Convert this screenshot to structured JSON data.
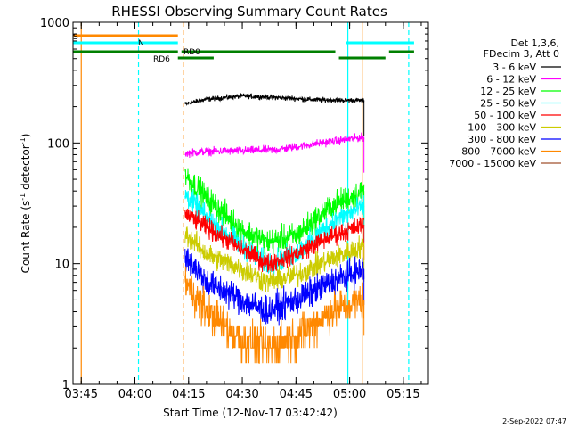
{
  "chart_data": {
    "type": "line",
    "title": "RHESSI Observing Summary Count Rates",
    "xlabel": "Start Time (12-Nov-17 03:42:42)",
    "ylabel": "Count Rate (s⁻¹ detector⁻¹)",
    "ylabel_base": "Count Rate (s",
    "ylabel_mid": " detector",
    "ylabel_end": ")",
    "ylabel_exp": "-1",
    "y_scale": "log",
    "ylim": [
      1,
      1000
    ],
    "y_ticks": [
      {
        "value": 1,
        "label": "1"
      },
      {
        "value": 10,
        "label": "10"
      },
      {
        "value": 100,
        "label": "100"
      },
      {
        "value": 1000,
        "label": "1000"
      }
    ],
    "xlim": [
      "03:42:42",
      "05:22:00"
    ],
    "x_ticks": [
      "03:45",
      "04:00",
      "04:15",
      "04:30",
      "04:45",
      "05:00",
      "05:15"
    ],
    "legend_position": "right",
    "legend_header": [
      "Det 1,3,6,",
      "FDecim 3, Att 0"
    ],
    "footer_date": "2-Sep-2022 07:47",
    "data_window": [
      "04:14",
      "05:04"
    ],
    "series": [
      {
        "name": "3 - 6 keV",
        "color": "#000000",
        "points": [
          [
            "04:14",
            210
          ],
          [
            "04:20",
            230
          ],
          [
            "04:30",
            245
          ],
          [
            "04:40",
            238
          ],
          [
            "04:50",
            228
          ],
          [
            "05:04",
            225
          ]
        ]
      },
      {
        "name": "6 - 12 keV",
        "color": "#ff00ff",
        "points": [
          [
            "04:14",
            82
          ],
          [
            "04:20",
            85
          ],
          [
            "04:30",
            86
          ],
          [
            "04:40",
            88
          ],
          [
            "04:50",
            98
          ],
          [
            "05:04",
            112
          ]
        ]
      },
      {
        "name": "12 - 25 keV",
        "color": "#00ff00",
        "points": [
          [
            "04:14",
            55
          ],
          [
            "04:20",
            35
          ],
          [
            "04:30",
            19
          ],
          [
            "04:37",
            15
          ],
          [
            "04:45",
            17
          ],
          [
            "04:55",
            30
          ],
          [
            "05:04",
            40
          ]
        ]
      },
      {
        "name": "25 - 50 keV",
        "color": "#00ffff",
        "points": [
          [
            "04:14",
            38
          ],
          [
            "04:20",
            24
          ],
          [
            "04:30",
            14
          ],
          [
            "04:37",
            10
          ],
          [
            "04:45",
            12
          ],
          [
            "04:55",
            22
          ],
          [
            "05:04",
            30
          ]
        ]
      },
      {
        "name": "50 - 100 keV",
        "color": "#ff0000",
        "points": [
          [
            "04:14",
            26
          ],
          [
            "04:20",
            20
          ],
          [
            "04:30",
            13
          ],
          [
            "04:37",
            10
          ],
          [
            "04:45",
            12
          ],
          [
            "04:55",
            17
          ],
          [
            "05:04",
            21
          ]
        ]
      },
      {
        "name": "100 - 300 keV",
        "color": "#cccc00",
        "points": [
          [
            "04:14",
            18
          ],
          [
            "04:20",
            12
          ],
          [
            "04:30",
            9
          ],
          [
            "04:37",
            7
          ],
          [
            "04:45",
            8
          ],
          [
            "04:55",
            11
          ],
          [
            "05:04",
            14
          ]
        ]
      },
      {
        "name": "300 - 800 keV",
        "color": "#0000ff",
        "points": [
          [
            "04:14",
            12
          ],
          [
            "04:20",
            7
          ],
          [
            "04:30",
            5
          ],
          [
            "04:37",
            4
          ],
          [
            "04:45",
            5
          ],
          [
            "04:55",
            7
          ],
          [
            "05:04",
            9
          ]
        ]
      },
      {
        "name": "800 - 7000 keV",
        "color": "#ff8800",
        "points": [
          [
            "04:14",
            7
          ],
          [
            "04:20",
            4
          ],
          [
            "04:30",
            2.3
          ],
          [
            "04:37",
            2
          ],
          [
            "04:45",
            2.5
          ],
          [
            "04:55",
            4
          ],
          [
            "05:04",
            5
          ]
        ]
      },
      {
        "name": "7000 - 15000 keV",
        "color": "#a0522d",
        "points": []
      }
    ],
    "flag_bars": [
      {
        "label": "S",
        "color": "#ff8800",
        "segments": [
          [
            "03:42:42",
            "04:12"
          ]
        ]
      },
      {
        "label": "N",
        "color": "#00ffff",
        "segments": [
          [
            "03:42:42",
            "04:12"
          ],
          [
            "04:59",
            "05:18"
          ]
        ]
      },
      {
        "label": "RD0",
        "color": "#008000",
        "segments": [
          [
            "03:42:42",
            "04:12"
          ],
          [
            "04:13",
            "04:56"
          ],
          [
            "05:11",
            "05:18"
          ]
        ]
      },
      {
        "label": "RD6",
        "color": "#008000",
        "segments": [
          [
            "04:12",
            "04:22"
          ],
          [
            "04:57",
            "05:10"
          ]
        ]
      }
    ],
    "vertical_lines": [
      {
        "time": "03:45:00",
        "color": "#ff8800",
        "style": "solid"
      },
      {
        "time": "04:01:00",
        "color": "#00ffff",
        "style": "dashed"
      },
      {
        "time": "04:13:30",
        "color": "#ff8800",
        "style": "dashed"
      },
      {
        "time": "04:59:30",
        "color": "#00ffff",
        "style": "solid"
      },
      {
        "time": "05:03:30",
        "color": "#ff8800",
        "style": "solid"
      },
      {
        "time": "05:16:30",
        "color": "#00ffff",
        "style": "dashed"
      }
    ]
  }
}
